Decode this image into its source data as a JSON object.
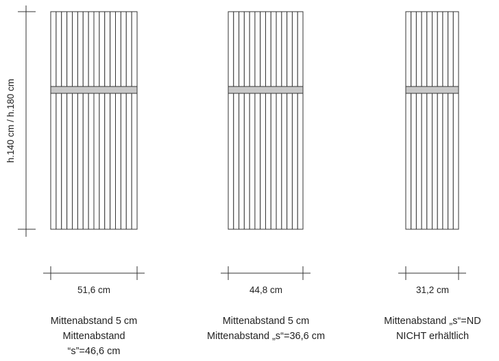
{
  "height_label": "h.140 cm / h.180 cm",
  "radiators": [
    {
      "id": "r1",
      "tubes": 16,
      "width_label": "51,6 cm",
      "desc_lines": [
        "Mittenabstand 5 cm",
        "Mittenabstand",
        "“s”=46,6 cm"
      ]
    },
    {
      "id": "r2",
      "tubes": 14,
      "width_label": "44,8 cm",
      "desc_lines": [
        "Mittenabstand 5 cm",
        "Mittenabstand „s“=36,6 cm"
      ]
    },
    {
      "id": "r3",
      "tubes": 10,
      "width_label": "31,2 cm",
      "desc_lines": [
        "Mittenabstand „s“=ND",
        "NICHT erhältlich"
      ]
    }
  ],
  "colors": {
    "line": "#333333",
    "bar_fill": "#c8c8c8",
    "text": "#222222"
  }
}
